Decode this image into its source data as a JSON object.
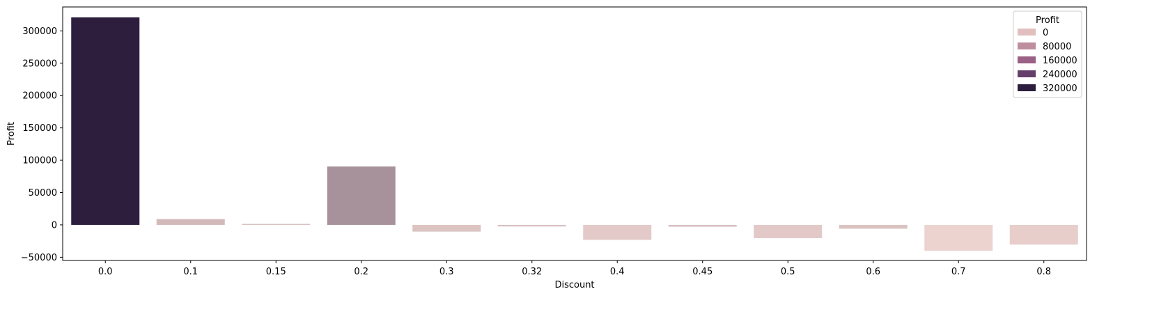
{
  "chart_data": {
    "type": "bar",
    "xlabel": "Discount",
    "ylabel": "Profit",
    "categories": [
      "0.0",
      "0.1",
      "0.15",
      "0.2",
      "0.3",
      "0.32",
      "0.4",
      "0.45",
      "0.5",
      "0.6",
      "0.7",
      "0.8"
    ],
    "values": [
      320900,
      9000,
      1500,
      90300,
      -10400,
      -2400,
      -23100,
      -2800,
      -20500,
      -5900,
      -40100,
      -30500
    ],
    "ylim": [
      -55000,
      337000
    ],
    "yticks": [
      -50000,
      0,
      50000,
      100000,
      150000,
      200000,
      250000,
      300000
    ],
    "ytick_labels": [
      "−50000",
      "0",
      "50000",
      "100000",
      "150000",
      "200000",
      "250000",
      "300000"
    ],
    "hue": {
      "name": "Profit",
      "min": -40100,
      "max": 320900,
      "color_low": "#ecd3cf",
      "color_high": "#2d1e3e"
    },
    "legend": {
      "title": "Profit",
      "placement": "top-right",
      "entries": [
        {
          "label": "0",
          "color": "#e2bfbf"
        },
        {
          "label": "80000",
          "color": "#be8d9e"
        },
        {
          "label": "160000",
          "color": "#9a6086"
        },
        {
          "label": "240000",
          "color": "#653e6c"
        },
        {
          "label": "320000",
          "color": "#2d1e3e"
        }
      ]
    },
    "grid": false
  }
}
